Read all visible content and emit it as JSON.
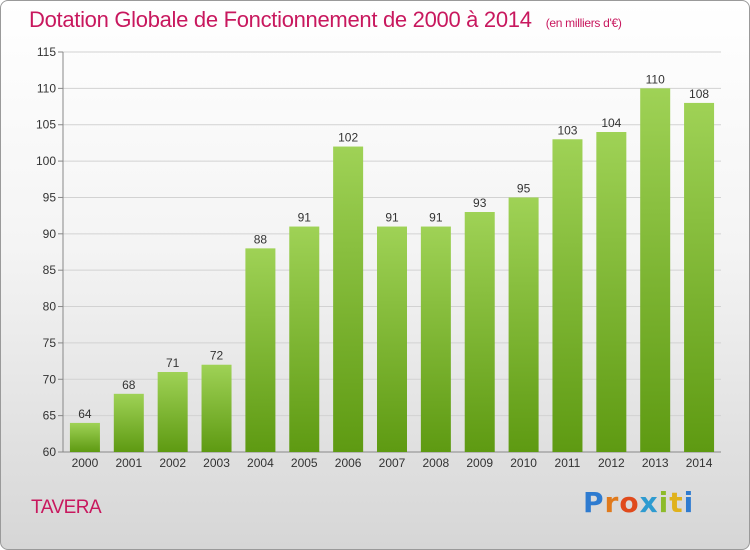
{
  "header": {
    "title": "Dotation Globale de Fonctionnement de 2000 à 2014",
    "subtitle": "(en milliers d'€)"
  },
  "footer": {
    "commune": "TAVERA",
    "logo_text": "Proxiti"
  },
  "colors": {
    "accent": "#c8185e",
    "bar_top": "#9fd256",
    "bar_bottom": "#5e9a12"
  },
  "chart_data": {
    "type": "bar",
    "title": "Dotation Globale de Fonctionnement de 2000 à 2014",
    "subtitle": "(en milliers d'€)",
    "xlabel": "",
    "ylabel": "",
    "categories": [
      "2000",
      "2001",
      "2002",
      "2003",
      "2004",
      "2005",
      "2006",
      "2007",
      "2008",
      "2009",
      "2010",
      "2011",
      "2012",
      "2013",
      "2014"
    ],
    "values": [
      64,
      68,
      71,
      72,
      88,
      91,
      102,
      91,
      91,
      93,
      95,
      103,
      104,
      110,
      108
    ],
    "ylim": [
      60,
      115
    ],
    "yticks": [
      60,
      65,
      70,
      75,
      80,
      85,
      90,
      95,
      100,
      105,
      110,
      115
    ],
    "grid": true,
    "legend": "none"
  }
}
